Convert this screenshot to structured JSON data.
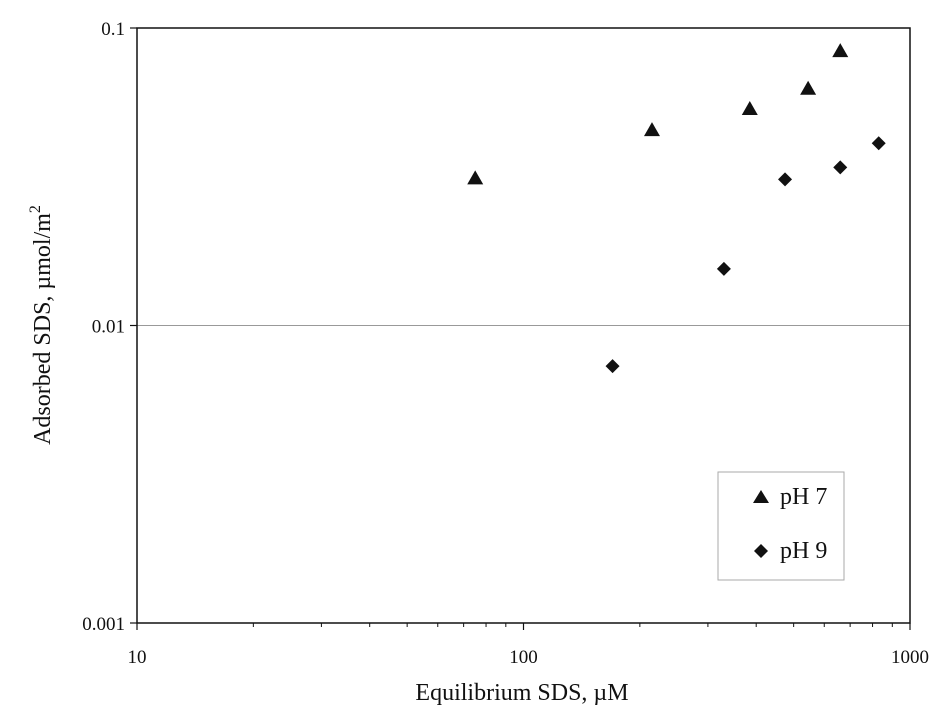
{
  "chart_data": {
    "type": "scatter",
    "title": "",
    "xlabel": "Equilibrium SDS, µM",
    "ylabel_main": "Adsorbed SDS, µmol/m",
    "ylabel_sup": "2",
    "x_scale": "log",
    "y_scale": "log",
    "xlim": [
      10,
      1000
    ],
    "ylim": [
      0.001,
      0.1
    ],
    "x_ticks": [
      "10",
      "100",
      "1000"
    ],
    "y_ticks": [
      "0.001",
      "0.01",
      "0.1"
    ],
    "gridlines_y": [
      0.01
    ],
    "legend_position": "bottom-right",
    "series": [
      {
        "name": "pH 7",
        "marker": "triangle",
        "color": "#111111",
        "x": [
          75,
          215,
          385,
          545,
          660
        ],
        "y": [
          0.031,
          0.045,
          0.053,
          0.062,
          0.083
        ]
      },
      {
        "name": "pH 9",
        "marker": "diamond",
        "color": "#111111",
        "x": [
          170,
          330,
          475,
          660,
          830
        ],
        "y": [
          0.0073,
          0.0155,
          0.031,
          0.034,
          0.041
        ]
      }
    ]
  }
}
